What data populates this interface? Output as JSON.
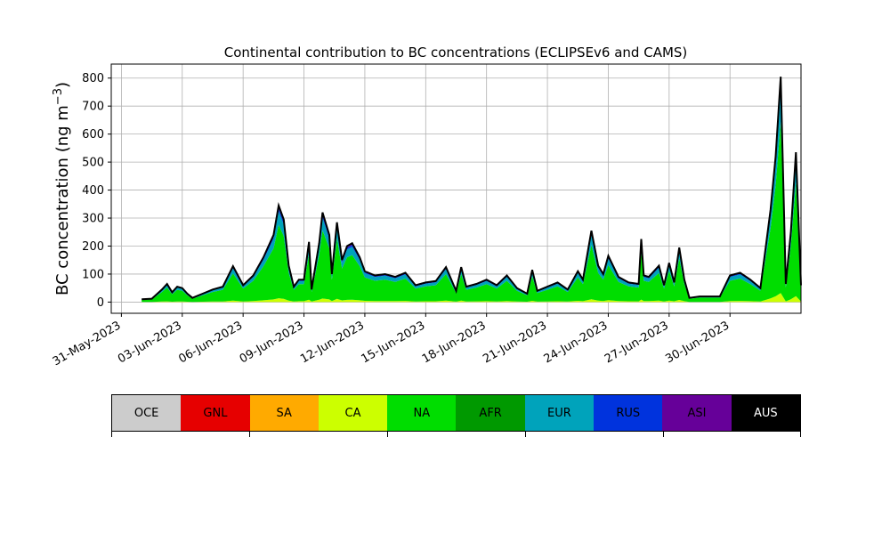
{
  "chart_data": {
    "type": "area",
    "title": "Continental contribution to BC concentrations (ECLIPSEv6 and CAMS)",
    "ylabel": "BC concentration (ng m",
    "ylabel_sup": "−3",
    "ylabel_close": ")",
    "xlabel": "",
    "xlim": [
      "2023-05-30T12:00",
      "2023-07-03T12:00"
    ],
    "ylim": [
      -40,
      850
    ],
    "yticks": [
      0,
      100,
      200,
      300,
      400,
      500,
      600,
      700,
      800
    ],
    "xticks": [
      "2023-05-31",
      "2023-06-03",
      "2023-06-06",
      "2023-06-09",
      "2023-06-12",
      "2023-06-15",
      "2023-06-18",
      "2023-06-21",
      "2023-06-24",
      "2023-06-27",
      "2023-06-30"
    ],
    "xtick_labels": [
      "31-May-2023",
      "03-Jun-2023",
      "06-Jun-2023",
      "09-Jun-2023",
      "12-Jun-2023",
      "15-Jun-2023",
      "18-Jun-2023",
      "21-Jun-2023",
      "24-Jun-2023",
      "27-Jun-2023",
      "30-Jun-2023"
    ],
    "grid": true,
    "legend_placement": "below",
    "series_colors": {
      "OCE": "#cccccc",
      "GNL": "#e60000",
      "SA": "#ffaa00",
      "CA": "#ccff00",
      "NA": "#00dd00",
      "AFR": "#009900",
      "EUR": "#00a3bb",
      "RUS": "#0033dd",
      "ASI": "#660099",
      "AUS": "#000000"
    },
    "legend": [
      "OCE",
      "GNL",
      "SA",
      "CA",
      "NA",
      "AFR",
      "EUR",
      "RUS",
      "ASI",
      "AUS"
    ],
    "total_points": [
      [
        "2023-06-01T00:00",
        10
      ],
      [
        "2023-06-01T12:00",
        12
      ],
      [
        "2023-06-02T00:00",
        45
      ],
      [
        "2023-06-02T06:00",
        65
      ],
      [
        "2023-06-02T12:00",
        35
      ],
      [
        "2023-06-02T18:00",
        55
      ],
      [
        "2023-06-03T00:00",
        50
      ],
      [
        "2023-06-03T06:00",
        30
      ],
      [
        "2023-06-03T12:00",
        15
      ],
      [
        "2023-06-04T00:00",
        30
      ],
      [
        "2023-06-04T12:00",
        45
      ],
      [
        "2023-06-05T00:00",
        55
      ],
      [
        "2023-06-05T12:00",
        128
      ],
      [
        "2023-06-06T00:00",
        60
      ],
      [
        "2023-06-06T12:00",
        95
      ],
      [
        "2023-06-07T00:00",
        160
      ],
      [
        "2023-06-07T12:00",
        240
      ],
      [
        "2023-06-07T18:00",
        345
      ],
      [
        "2023-06-08T00:00",
        295
      ],
      [
        "2023-06-08T06:00",
        130
      ],
      [
        "2023-06-08T12:00",
        55
      ],
      [
        "2023-06-08T18:00",
        80
      ],
      [
        "2023-06-09T00:00",
        80
      ],
      [
        "2023-06-09T06:00",
        215
      ],
      [
        "2023-06-09T09:00",
        45
      ],
      [
        "2023-06-09T18:00",
        210
      ],
      [
        "2023-06-09T22:00",
        320
      ],
      [
        "2023-06-10T06:00",
        240
      ],
      [
        "2023-06-10T09:00",
        100
      ],
      [
        "2023-06-10T15:00",
        285
      ],
      [
        "2023-06-10T21:00",
        150
      ],
      [
        "2023-06-11T03:00",
        200
      ],
      [
        "2023-06-11T09:00",
        210
      ],
      [
        "2023-06-11T18:00",
        160
      ],
      [
        "2023-06-12T00:00",
        110
      ],
      [
        "2023-06-12T12:00",
        95
      ],
      [
        "2023-06-13T00:00",
        100
      ],
      [
        "2023-06-13T12:00",
        90
      ],
      [
        "2023-06-14T00:00",
        105
      ],
      [
        "2023-06-14T12:00",
        60
      ],
      [
        "2023-06-15T00:00",
        70
      ],
      [
        "2023-06-15T12:00",
        75
      ],
      [
        "2023-06-16T00:00",
        125
      ],
      [
        "2023-06-16T12:00",
        40
      ],
      [
        "2023-06-16T18:00",
        125
      ],
      [
        "2023-06-17T00:00",
        55
      ],
      [
        "2023-06-17T12:00",
        65
      ],
      [
        "2023-06-18T00:00",
        80
      ],
      [
        "2023-06-18T12:00",
        60
      ],
      [
        "2023-06-19T00:00",
        95
      ],
      [
        "2023-06-19T12:00",
        50
      ],
      [
        "2023-06-20T00:00",
        30
      ],
      [
        "2023-06-20T06:00",
        115
      ],
      [
        "2023-06-20T12:00",
        40
      ],
      [
        "2023-06-21T00:00",
        55
      ],
      [
        "2023-06-21T12:00",
        70
      ],
      [
        "2023-06-22T00:00",
        45
      ],
      [
        "2023-06-22T12:00",
        110
      ],
      [
        "2023-06-22T18:00",
        80
      ],
      [
        "2023-06-23T04:00",
        255
      ],
      [
        "2023-06-23T12:00",
        130
      ],
      [
        "2023-06-23T18:00",
        100
      ],
      [
        "2023-06-24T00:00",
        165
      ],
      [
        "2023-06-24T12:00",
        90
      ],
      [
        "2023-06-25T00:00",
        70
      ],
      [
        "2023-06-25T12:00",
        65
      ],
      [
        "2023-06-25T15:00",
        225
      ],
      [
        "2023-06-25T18:00",
        95
      ],
      [
        "2023-06-26T00:00",
        90
      ],
      [
        "2023-06-26T12:00",
        130
      ],
      [
        "2023-06-26T18:00",
        60
      ],
      [
        "2023-06-27T00:00",
        140
      ],
      [
        "2023-06-27T06:00",
        70
      ],
      [
        "2023-06-27T12:00",
        195
      ],
      [
        "2023-06-27T18:00",
        80
      ],
      [
        "2023-06-28T00:00",
        15
      ],
      [
        "2023-06-28T12:00",
        20
      ],
      [
        "2023-06-29T00:00",
        20
      ],
      [
        "2023-06-29T12:00",
        20
      ],
      [
        "2023-06-30T00:00",
        95
      ],
      [
        "2023-06-30T12:00",
        105
      ],
      [
        "2023-07-01T00:00",
        80
      ],
      [
        "2023-07-01T12:00",
        50
      ],
      [
        "2023-07-02T00:00",
        330
      ],
      [
        "2023-07-02T06:00",
        520
      ],
      [
        "2023-07-02T12:00",
        805
      ],
      [
        "2023-07-02T18:00",
        65
      ],
      [
        "2023-07-03T00:00",
        250
      ],
      [
        "2023-07-03T06:00",
        535
      ],
      [
        "2023-07-03T12:00",
        60
      ]
    ]
  }
}
